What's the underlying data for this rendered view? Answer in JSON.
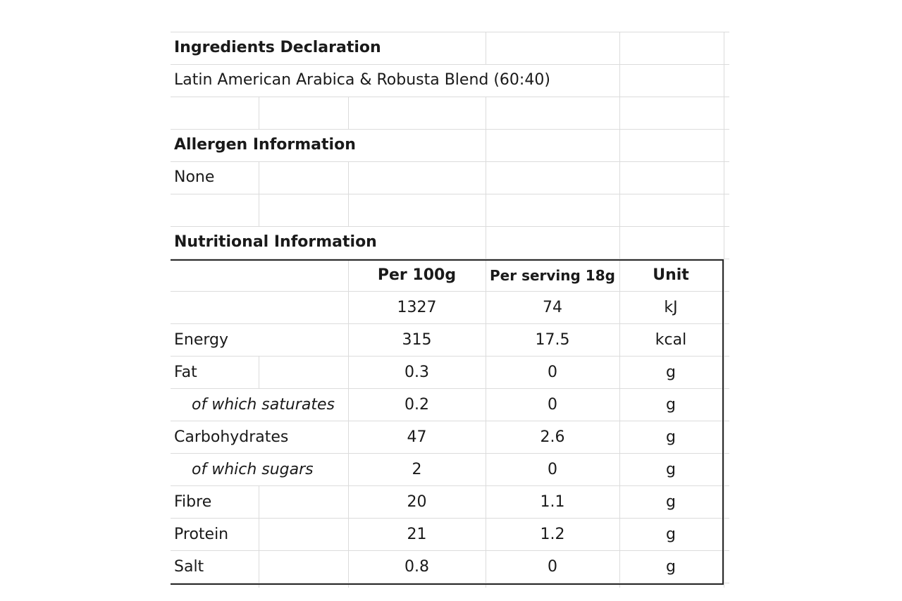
{
  "ingredients": {
    "heading": "Ingredients Declaration",
    "text": "Latin American Arabica & Robusta Blend (60:40)"
  },
  "allergen": {
    "heading": "Allergen Information",
    "text": "None"
  },
  "nutrition": {
    "heading": "Nutritional Information",
    "columns": [
      "Per 100g",
      "Per serving 18g",
      "Unit"
    ],
    "rows": [
      {
        "label": "",
        "indent": false,
        "per100": "1327",
        "perServing": "74",
        "unit": "kJ"
      },
      {
        "label": "Energy",
        "indent": false,
        "per100": "315",
        "perServing": "17.5",
        "unit": "kcal"
      },
      {
        "label": "Fat",
        "indent": false,
        "per100": "0.3",
        "perServing": "0",
        "unit": "g"
      },
      {
        "label": "of which saturates",
        "indent": true,
        "per100": "0.2",
        "perServing": "0",
        "unit": "g"
      },
      {
        "label": "Carbohydrates",
        "indent": false,
        "per100": "47",
        "perServing": "2.6",
        "unit": "g"
      },
      {
        "label": "of which sugars",
        "indent": true,
        "per100": "2",
        "perServing": "0",
        "unit": "g"
      },
      {
        "label": "Fibre",
        "indent": false,
        "per100": "20",
        "perServing": "1.1",
        "unit": "g"
      },
      {
        "label": "Protein",
        "indent": false,
        "per100": "21",
        "perServing": "1.2",
        "unit": "g"
      },
      {
        "label": "Salt",
        "indent": false,
        "per100": "0.8",
        "perServing": "0",
        "unit": "g"
      }
    ]
  }
}
